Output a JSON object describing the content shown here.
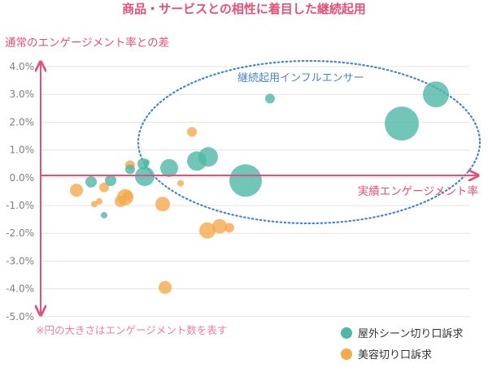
{
  "chart_data": {
    "type": "scatter",
    "title": "商品・サービスとの相性に着目した継続起用",
    "ylabel": "通常のエンゲージメント率との差",
    "xlabel": "実績エンゲージメント率",
    "ylim": [
      -5.0,
      4.0
    ],
    "y_ticks": [
      "4.0%",
      "3.0%",
      "2.0%",
      "1.0%",
      "0.0%",
      "-1.0%",
      "-2.0%",
      "-3.0%",
      "-4.0%",
      "-5.0%"
    ],
    "annotation": "継続起用インフルエンサー",
    "note": "※円の大きさはエンゲージメント数を表す",
    "legend_position": "bottom-right",
    "grid": true,
    "series": [
      {
        "name": "屋外シーン切り口訴求",
        "color": "#4fb8a5",
        "points": [
          {
            "x": 0.112,
            "y": -0.15,
            "size": 7
          },
          {
            "x": 0.136,
            "y": -0.1,
            "size": 7
          },
          {
            "x": 0.128,
            "y": -1.35,
            "size": 4
          },
          {
            "x": 0.16,
            "y": 0.3,
            "size": 6
          },
          {
            "x": 0.176,
            "y": 0.5,
            "size": 7
          },
          {
            "x": 0.18,
            "y": 0.55,
            "size": 4
          },
          {
            "x": 0.178,
            "y": 0.05,
            "size": 12
          },
          {
            "x": 0.208,
            "y": 0.35,
            "size": 11
          },
          {
            "x": 0.242,
            "y": 0.6,
            "size": 12
          },
          {
            "x": 0.256,
            "y": 0.75,
            "size": 12
          },
          {
            "x": 0.302,
            "y": -0.1,
            "size": 20
          },
          {
            "x": 0.332,
            "y": 2.85,
            "size": 6
          },
          {
            "x": 0.494,
            "y": 1.95,
            "size": 21
          },
          {
            "x": 0.536,
            "y": 3.0,
            "size": 16
          }
        ]
      },
      {
        "name": "美容切り口訴求",
        "color": "#f6a94d",
        "points": [
          {
            "x": 0.094,
            "y": -0.45,
            "size": 8
          },
          {
            "x": 0.116,
            "y": -0.95,
            "size": 4
          },
          {
            "x": 0.122,
            "y": -0.85,
            "size": 4
          },
          {
            "x": 0.128,
            "y": -0.35,
            "size": 6
          },
          {
            "x": 0.148,
            "y": -0.85,
            "size": 7
          },
          {
            "x": 0.154,
            "y": -0.7,
            "size": 10
          },
          {
            "x": 0.157,
            "y": -0.65,
            "size": 6
          },
          {
            "x": 0.16,
            "y": 0.45,
            "size": 6
          },
          {
            "x": 0.2,
            "y": -0.95,
            "size": 9
          },
          {
            "x": 0.203,
            "y": -3.95,
            "size": 8
          },
          {
            "x": 0.222,
            "y": -0.2,
            "size": 4
          },
          {
            "x": 0.236,
            "y": 1.65,
            "size": 6
          },
          {
            "x": 0.255,
            "y": -1.9,
            "size": 10
          },
          {
            "x": 0.27,
            "y": -1.75,
            "size": 9
          },
          {
            "x": 0.282,
            "y": -1.8,
            "size": 6
          }
        ]
      }
    ]
  }
}
